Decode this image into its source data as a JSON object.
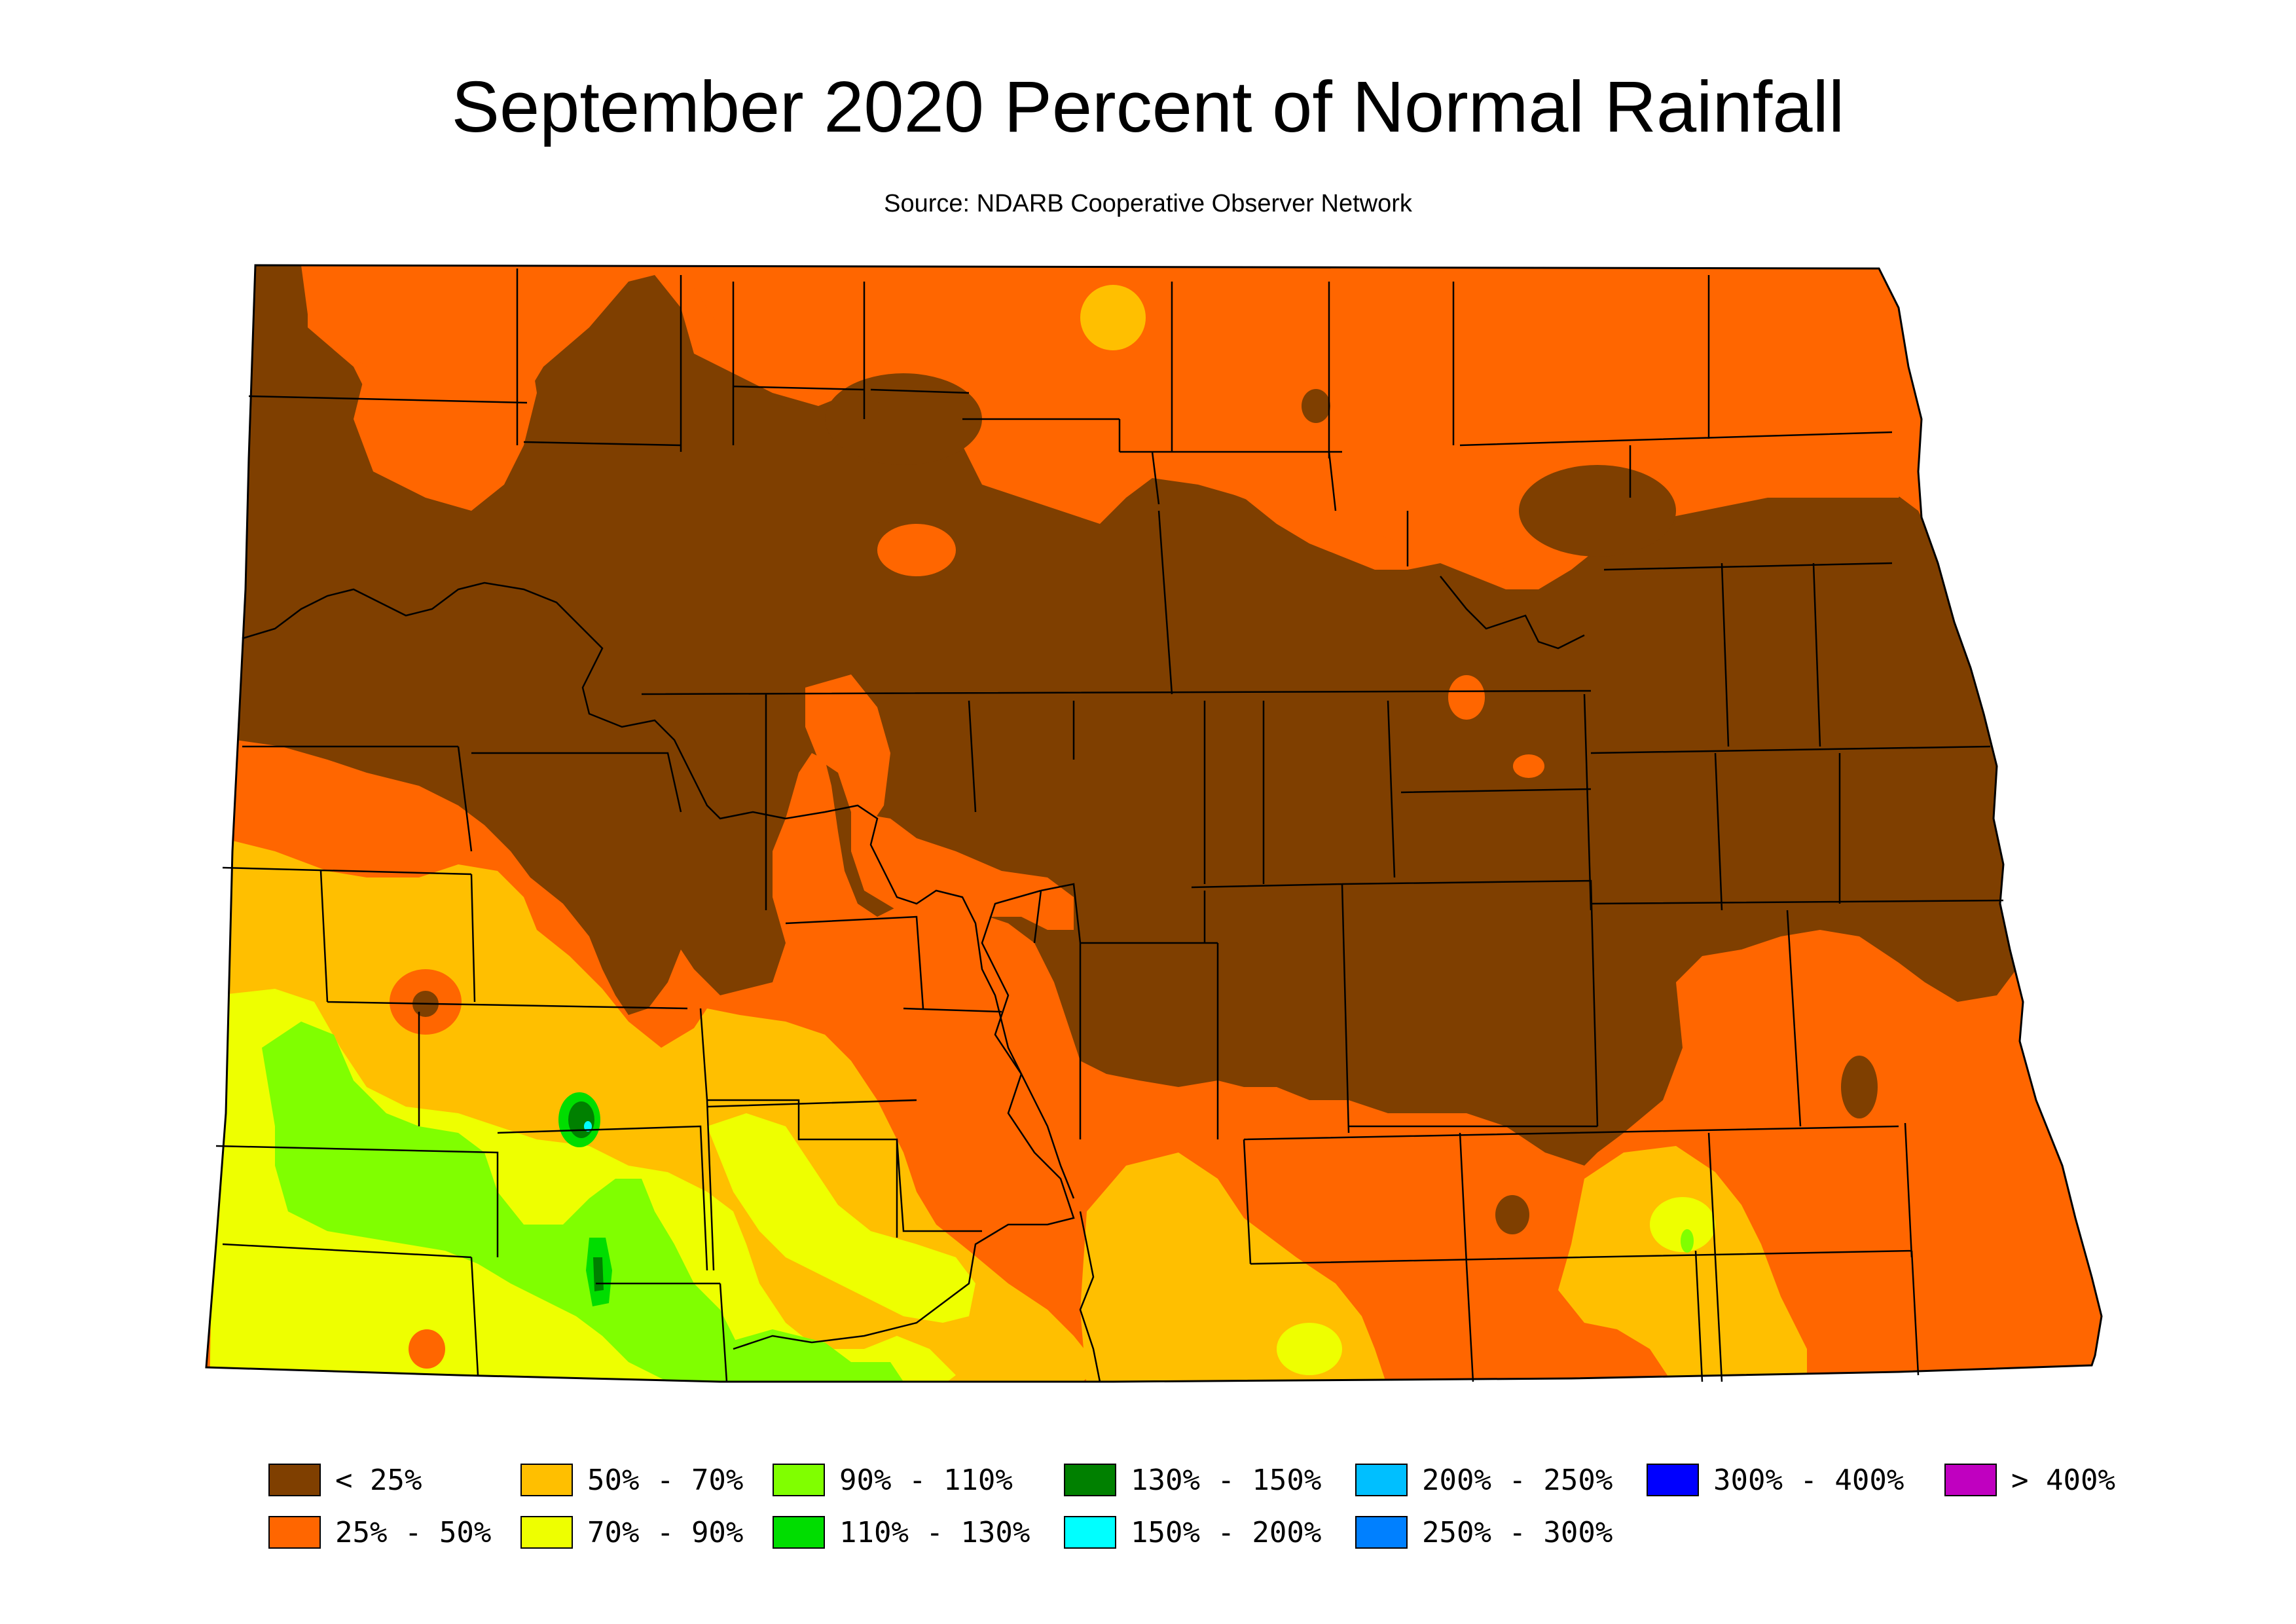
{
  "title": "September 2020 Percent of Normal Rainfall",
  "subtitle": "Source: NDARB Cooperative Observer Network",
  "colors": {
    "lt25": "#7f3f00",
    "p25_50": "#ff6600",
    "p50_70": "#ffbf00",
    "p70_90": "#eeff00",
    "p90_110": "#80ff00",
    "p110_130": "#00dd00",
    "p130_150": "#008000",
    "p150_200": "#00ffff",
    "p200_250": "#00bfff",
    "p250_300": "#0080ff",
    "p300_400": "#0000ff",
    "gt400": "#c000c0"
  },
  "legend": [
    {
      "label": "< 25%",
      "color": "#7f3f00"
    },
    {
      "label": "25% - 50%",
      "color": "#ff6600"
    },
    {
      "label": "50% - 70%",
      "color": "#ffbf00"
    },
    {
      "label": "70% - 90%",
      "color": "#eeff00"
    },
    {
      "label": "90% - 110%",
      "color": "#80ff00"
    },
    {
      "label": "110% - 130%",
      "color": "#00dd00"
    },
    {
      "label": "130% - 150%",
      "color": "#008000"
    },
    {
      "label": "150% - 200%",
      "color": "#00ffff"
    },
    {
      "label": "200% - 250%",
      "color": "#00bfff"
    },
    {
      "label": "250% - 300%",
      "color": "#0080ff"
    },
    {
      "label": "300% - 400%",
      "color": "#0000ff"
    },
    {
      "label": "> 400%",
      "color": "#c000c0"
    }
  ]
}
